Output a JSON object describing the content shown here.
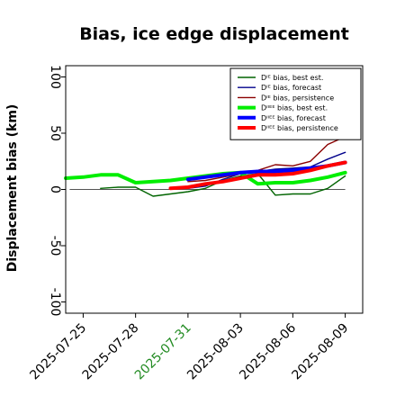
{
  "chart_data": {
    "type": "line",
    "title": "Bias, ice edge displacement",
    "xlabel": "",
    "ylabel": "Displacement bias (km)",
    "xlim": [
      "2025-07-24",
      "2025-08-10"
    ],
    "ylim": [
      -110,
      110
    ],
    "yticks": [
      100,
      50,
      0,
      -50,
      -100
    ],
    "ytick_labels": [
      "100",
      "50",
      "0",
      "-50",
      "-100"
    ],
    "xticks": [
      "2025-07-25",
      "2025-07-28",
      "2025-07-31",
      "2025-08-03",
      "2025-08-06",
      "2025-08-09"
    ],
    "highlight_tick": "2025-07-31",
    "highlight_color": "#228b22",
    "zero_line": true,
    "grid": false,
    "legend": "top-right",
    "series": [
      {
        "name": "Dᴵᴱ bias, best est.",
        "color": "#006400",
        "width": 1.4,
        "x": [
          "2025-07-26",
          "2025-07-27",
          "2025-07-28",
          "2025-07-29",
          "2025-07-30",
          "2025-07-31",
          "2025-08-01",
          "2025-08-02",
          "2025-08-03",
          "2025-08-04",
          "2025-08-05",
          "2025-08-06",
          "2025-08-07",
          "2025-08-08",
          "2025-08-09"
        ],
        "values": [
          1,
          2,
          2,
          -6,
          -4,
          -2,
          1,
          8,
          12,
          14,
          -5,
          -4,
          -4,
          1,
          12
        ]
      },
      {
        "name": "Dᴵᴱ bias, forecast",
        "color": "#00008b",
        "width": 1.4,
        "x": [
          "2025-07-31",
          "2025-08-01",
          "2025-08-02",
          "2025-08-03",
          "2025-08-04",
          "2025-08-05",
          "2025-08-06",
          "2025-08-07",
          "2025-08-08",
          "2025-08-09"
        ],
        "values": [
          1,
          3,
          9,
          14,
          16,
          18,
          19,
          20,
          27,
          33
        ]
      },
      {
        "name": "Dᴵᴱ bias, persistence",
        "color": "#8b0000",
        "width": 1.4,
        "x": [
          "2025-07-31",
          "2025-08-01",
          "2025-08-02",
          "2025-08-03",
          "2025-08-04",
          "2025-08-05",
          "2025-08-06",
          "2025-08-07",
          "2025-08-08",
          "2025-08-09"
        ],
        "values": [
          7,
          8,
          11,
          14,
          17,
          22,
          21,
          25,
          40,
          47
        ]
      },
      {
        "name": "Dᴵᴵᴱᴱ bias, best est.",
        "color": "#00ee00",
        "width": 4,
        "x": [
          "2025-07-24",
          "2025-07-25",
          "2025-07-26",
          "2025-07-27",
          "2025-07-28",
          "2025-07-29",
          "2025-07-30",
          "2025-07-31",
          "2025-08-01",
          "2025-08-02",
          "2025-08-03",
          "2025-08-04",
          "2025-08-05",
          "2025-08-06",
          "2025-08-07",
          "2025-08-08",
          "2025-08-09"
        ],
        "values": [
          10,
          11,
          13,
          13,
          6,
          7,
          8,
          10,
          12,
          14,
          15,
          5,
          6,
          6,
          8,
          11,
          15
        ]
      },
      {
        "name": "Dᴵᴵᴱᴱ bias, forecast",
        "color": "#0000ff",
        "width": 4,
        "x": [
          "2025-07-31",
          "2025-08-01",
          "2025-08-02",
          "2025-08-03",
          "2025-08-04",
          "2025-08-05",
          "2025-08-06",
          "2025-08-07",
          "2025-08-08",
          "2025-08-09"
        ],
        "values": [
          9,
          11,
          13,
          15,
          16,
          16,
          17,
          19,
          21,
          24
        ]
      },
      {
        "name": "Dᴵᴵᴱᴱ bias, persistence",
        "color": "#ff0000",
        "width": 4,
        "x": [
          "2025-07-30",
          "2025-07-31",
          "2025-08-01",
          "2025-08-02",
          "2025-08-03",
          "2025-08-04",
          "2025-08-05",
          "2025-08-06",
          "2025-08-07",
          "2025-08-08",
          "2025-08-09"
        ],
        "values": [
          1,
          2,
          5,
          7,
          10,
          13,
          13,
          14,
          17,
          21,
          24
        ]
      }
    ]
  }
}
